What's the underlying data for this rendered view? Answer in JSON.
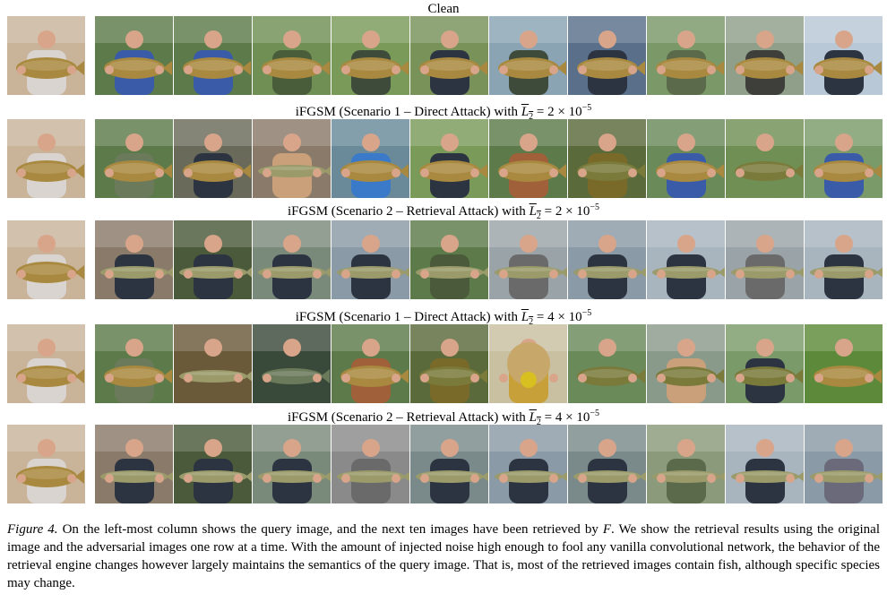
{
  "figure": {
    "rows": [
      {
        "title_parts": [
          "Clean"
        ],
        "has_formula": false
      },
      {
        "title_prefix": "iFGSM (Scenario 1 – Direct Attack) with ",
        "formula_var": "L",
        "formula_sub": "2",
        "formula_eq": " = 2 × 10",
        "formula_exp": "−5",
        "has_formula": true
      },
      {
        "title_prefix": "iFGSM (Scenario 2 – Retrieval Attack) with ",
        "formula_var": "L",
        "formula_sub": "2",
        "formula_eq": " = 2 × 10",
        "formula_exp": "−5",
        "has_formula": true
      },
      {
        "title_prefix": "iFGSM (Scenario 1 – Direct Attack) with ",
        "formula_var": "L",
        "formula_sub": "2",
        "formula_eq": " = 4 × 10",
        "formula_exp": "−5",
        "has_formula": true
      },
      {
        "title_prefix": "iFGSM (Scenario 2 – Retrieval Attack) with ",
        "formula_var": "L",
        "formula_sub": "2",
        "formula_eq": " = 4 × 10",
        "formula_exp": "−5",
        "has_formula": true
      }
    ],
    "clean_title": "Clean"
  },
  "caption": {
    "label": "Figure 4.",
    "text_1": " On the left-most column shows the query image, and the next ten images have been retrieved by ",
    "math_F": "F",
    "text_2": ". We show the retrieval results using the original image and the adversarial images one row at a time. With the amount of injected noise high enough to fool any vanilla convolutional network, the behavior of the retrieval engine changes however largely maintains the semantics of the query image. That is, most of the retrieved images contain fish, although specific species may change."
  },
  "palette": {
    "grass": "#4f7a3a",
    "water": "#8a9aa6",
    "sky": "#b9c8d6",
    "fish_carp": "#a8893f",
    "fish_pike": "#9a9a6a",
    "skin": "#d8a58a",
    "dark_jacket": "#2c3442",
    "blue_jacket": "#3a5ca8"
  }
}
